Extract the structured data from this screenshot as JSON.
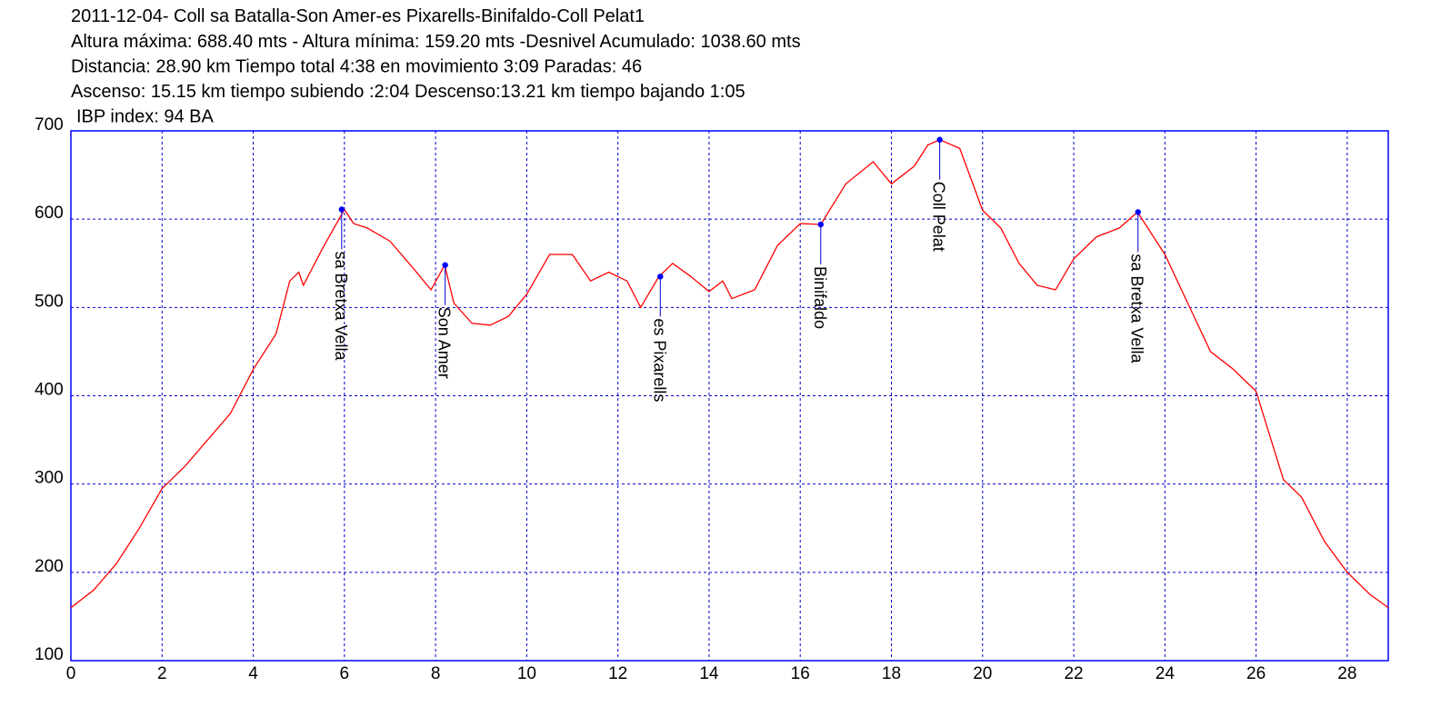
{
  "chart_data": {
    "type": "line",
    "title": "2011-12-04- Coll sa Batalla-Son Amer-es Pixarells-Binifaldo-Coll Pelat1",
    "subtitle": [
      "Altura máxima: 688.40 mts - Altura mínima: 159.20 mts -Desnivel Acumulado: 1038.60 mts",
      "Distancia: 28.90 km  Tiempo total 4:38  en movimiento 3:09 Paradas: 46",
      "Ascenso: 15.15 km  tiempo subiendo :2:04  Descenso:13.21 km tiempo bajando 1:05",
      "IBP index: 94 BA"
    ],
    "color": "#ff0000",
    "x": [
      0,
      0.5,
      1,
      1.5,
      2,
      2.5,
      3,
      3.5,
      4,
      4.5,
      4.8,
      5,
      5.1,
      5.5,
      6,
      6.2,
      6.5,
      7,
      7.5,
      7.9,
      8.2,
      8.4,
      8.8,
      9.2,
      9.6,
      10,
      10.5,
      11,
      11.4,
      11.8,
      12.2,
      12.5,
      12.9,
      13.2,
      13.6,
      14,
      14.3,
      14.5,
      15,
      15.5,
      16,
      16.45,
      17,
      17.6,
      18,
      18.5,
      18.8,
      19.06,
      19.5,
      20,
      20.4,
      20.8,
      21.2,
      21.6,
      22,
      22.5,
      23,
      23.4,
      24,
      24.5,
      25,
      25.5,
      26,
      26.3,
      26.6,
      27,
      27.5,
      28,
      28.5,
      28.9
    ],
    "values": [
      160,
      180,
      210,
      250,
      295,
      320,
      350,
      380,
      430,
      470,
      530,
      540,
      525,
      565,
      611,
      595,
      590,
      575,
      545,
      520,
      548,
      505,
      482,
      480,
      490,
      515,
      560,
      560,
      530,
      540,
      530,
      500,
      535,
      550,
      535,
      518,
      530,
      510,
      520,
      570,
      595,
      594,
      640,
      665,
      640,
      660,
      684,
      690,
      680,
      610,
      590,
      550,
      525,
      520,
      555,
      580,
      590,
      608,
      560,
      505,
      450,
      430,
      405,
      355,
      305,
      285,
      235,
      200,
      175,
      160
    ],
    "annotations": [
      {
        "x": 5.94,
        "y": 611,
        "label": "sa Bretxa Vella"
      },
      {
        "x": 8.21,
        "y": 548,
        "label": "Son Amer"
      },
      {
        "x": 12.93,
        "y": 535,
        "label": "es Pixarells"
      },
      {
        "x": 16.45,
        "y": 594,
        "label": "Binifaldo"
      },
      {
        "x": 19.06,
        "y": 690,
        "label": "Coll Pelat"
      },
      {
        "x": 23.41,
        "y": 608,
        "label": "sa Bretxa Vella"
      }
    ],
    "xlim": [
      0,
      28.9
    ],
    "ylim": [
      100,
      700
    ],
    "xticks": [
      0,
      2,
      4,
      6,
      8,
      10,
      12,
      14,
      16,
      18,
      20,
      22,
      24,
      26,
      28
    ],
    "yticks": [
      100,
      200,
      300,
      400,
      500,
      600,
      700
    ],
    "grid": true
  }
}
